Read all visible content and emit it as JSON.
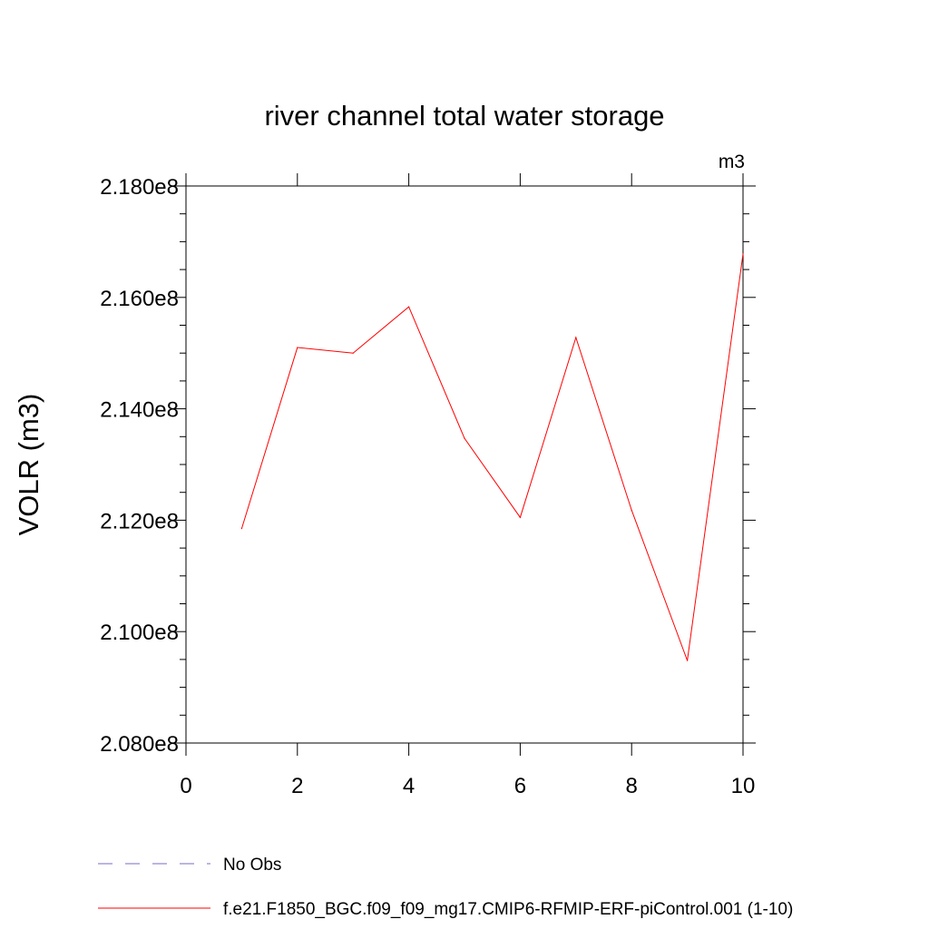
{
  "chart_data": {
    "type": "line",
    "title": "river channel total water storage",
    "units_label": "m3",
    "ylabel": "VOLR  (m3)",
    "xlabel": "",
    "xlim": [
      0,
      10
    ],
    "ylim": [
      208000000,
      218000000
    ],
    "x_ticks": [
      0,
      2,
      4,
      6,
      8,
      10
    ],
    "x_tick_labels": [
      "0",
      "2",
      "4",
      "6",
      "8",
      "10"
    ],
    "y_ticks": [
      208000000,
      210000000,
      212000000,
      214000000,
      216000000,
      218000000
    ],
    "y_tick_labels": [
      "2.080e8",
      "2.100e8",
      "2.120e8",
      "2.140e8",
      "2.160e8",
      "2.180e8"
    ],
    "grid": false,
    "legend_position": "bottom",
    "series": [
      {
        "name": "f.e21.F1850_BGC.f09_f09_mg17.CMIP6-RFMIP-ERF-piControl.001 (1-10)",
        "color": "#ff0000",
        "style": "solid",
        "x": [
          1,
          2,
          3,
          4,
          5,
          6,
          7,
          8,
          9,
          10
        ],
        "values": [
          211850000,
          215100000,
          215000000,
          215830000,
          213470000,
          212050000,
          215280000,
          212180000,
          209480000,
          216780000
        ]
      },
      {
        "name": "No Obs",
        "color": "#7b68c8",
        "style": "dashed",
        "x": [],
        "values": []
      }
    ]
  }
}
